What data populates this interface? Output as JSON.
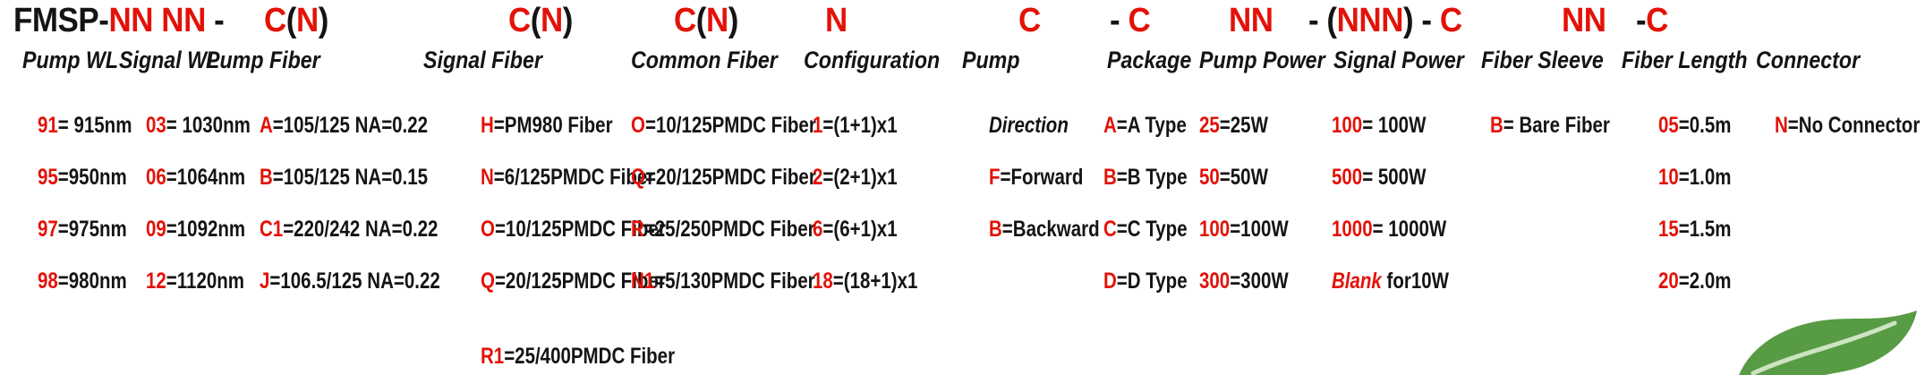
{
  "colors": {
    "accent_red": "#e31208",
    "text_black": "#141414",
    "leaf_green": "#579b44"
  },
  "part_number": {
    "prefix": "FMSP-",
    "wl_codes": "NN NN",
    "dash": " - ",
    "cn": {
      "c": "C",
      "open": "(",
      "n": "N",
      "close": ")"
    },
    "configuration": "N",
    "pump": "C",
    "package": {
      "dash": "- ",
      "c": "C"
    },
    "pump_power": "NN",
    "signal_power": {
      "pre": "- (",
      "n": "NNN",
      "post": ") - ",
      "c": "C"
    },
    "fiber_length": "NN",
    "connector": {
      "dash": "-",
      "c": "C"
    }
  },
  "columns": {
    "pump_wl": {
      "header": "Pump WL",
      "items": [
        [
          [
            "91",
            "r"
          ],
          [
            "= 915nm",
            "b"
          ]
        ],
        [
          [
            "95",
            "r"
          ],
          [
            "=950nm",
            "b"
          ]
        ],
        [
          [
            "97",
            "r"
          ],
          [
            "=975nm",
            "b"
          ]
        ],
        [
          [
            "98",
            "r"
          ],
          [
            "=980nm",
            "b"
          ]
        ]
      ]
    },
    "signal_wl": {
      "header": "Signal WL",
      "items": [
        [
          [
            "03",
            "r"
          ],
          [
            "= 1030nm",
            "b"
          ]
        ],
        [
          [
            "06",
            "r"
          ],
          [
            "=1064nm",
            "b"
          ]
        ],
        [
          [
            "09",
            "r"
          ],
          [
            "=1092nm",
            "b"
          ]
        ],
        [
          [
            "12",
            "r"
          ],
          [
            "=1120nm",
            "b"
          ]
        ]
      ]
    },
    "pump_fiber": {
      "header": "Pump Fiber",
      "items": [
        [
          [
            "A",
            "r"
          ],
          [
            "=105/125 NA=0.22",
            "b"
          ]
        ],
        [
          [
            "B",
            "r"
          ],
          [
            "=105/125 NA=0.15",
            "b"
          ]
        ],
        [
          [
            "C1",
            "r"
          ],
          [
            "=220/242 NA=0.22",
            "b"
          ]
        ],
        [
          [
            "J",
            "r"
          ],
          [
            "=106.5/125 NA=0.22",
            "b"
          ]
        ]
      ]
    },
    "signal_fiber": {
      "header": "Signal Fiber",
      "items": [
        [
          [
            "H",
            "r"
          ],
          [
            "=PM980 Fiber",
            "b"
          ]
        ],
        [
          [
            "N",
            "r"
          ],
          [
            "=6/125PMDC Fiber",
            "b"
          ]
        ],
        [
          [
            "O",
            "r"
          ],
          [
            "=10/125PMDC Fiber",
            "b"
          ]
        ],
        [
          [
            "Q",
            "r"
          ],
          [
            "=20/125PMDC Fiber",
            "b"
          ]
        ],
        [
          [
            "R1",
            "r"
          ],
          [
            "=25/400PMDC Fiber",
            "b"
          ]
        ]
      ]
    },
    "common_fiber": {
      "header": "Common Fiber",
      "items": [
        [
          [
            "O",
            "r"
          ],
          [
            "=10/125PMDC Fiber",
            "b"
          ]
        ],
        [
          [
            "Q",
            "r"
          ],
          [
            "=20/125PMDC Fiber",
            "b"
          ]
        ],
        [
          [
            "R",
            "r"
          ],
          [
            "=25/250PMDC Fiber",
            "b"
          ]
        ],
        [
          [
            "N1",
            "r"
          ],
          [
            "=5/130PMDC Fiber",
            "b"
          ]
        ]
      ]
    },
    "configuration": {
      "header": "Configuration",
      "items": [
        [
          [
            "1",
            "r"
          ],
          [
            "=(1+1)x1",
            "b"
          ]
        ],
        [
          [
            "2",
            "r"
          ],
          [
            "=(2+1)x1",
            "b"
          ]
        ],
        [
          [
            "6",
            "r"
          ],
          [
            "=(6+1)x1",
            "b"
          ]
        ],
        [
          [
            "18",
            "r"
          ],
          [
            "=(18+1)x1",
            "b"
          ]
        ]
      ]
    },
    "pump": {
      "header": "Pump",
      "items": [
        [
          [
            "Direction",
            "bi"
          ]
        ],
        [
          [
            "F",
            "r"
          ],
          [
            "=Forward",
            "b"
          ]
        ],
        [
          [
            "B",
            "r"
          ],
          [
            "=Backward",
            "b"
          ]
        ]
      ]
    },
    "package": {
      "header": "Package",
      "items": [
        [
          [
            "A",
            "r"
          ],
          [
            "=A Type",
            "b"
          ]
        ],
        [
          [
            "B",
            "r"
          ],
          [
            "=B Type",
            "b"
          ]
        ],
        [
          [
            "C",
            "r"
          ],
          [
            "=C Type",
            "b"
          ]
        ],
        [
          [
            "D",
            "r"
          ],
          [
            "=D Type",
            "b"
          ]
        ]
      ]
    },
    "pump_power": {
      "header": "Pump Power",
      "items": [
        [
          [
            "25",
            "r"
          ],
          [
            "=25W",
            "b"
          ]
        ],
        [
          [
            "50",
            "r"
          ],
          [
            "=50W",
            "b"
          ]
        ],
        [
          [
            "100",
            "r"
          ],
          [
            "=100W",
            "b"
          ]
        ],
        [
          [
            "300",
            "r"
          ],
          [
            "=300W",
            "b"
          ]
        ]
      ]
    },
    "signal_power": {
      "header": "Signal Power",
      "items": [
        [
          [
            "100",
            "r"
          ],
          [
            "= 100W",
            "b"
          ]
        ],
        [
          [
            "500",
            "r"
          ],
          [
            "= 500W",
            "b"
          ]
        ],
        [
          [
            "1000",
            "r"
          ],
          [
            "= 1000W",
            "b"
          ]
        ],
        [
          [
            "Blank",
            "ri"
          ],
          [
            " for10W",
            "b"
          ]
        ]
      ]
    },
    "fiber_sleeve": {
      "header": "Fiber Sleeve",
      "items": [
        [
          [
            "B",
            "r"
          ],
          [
            "= Bare Fiber",
            "b"
          ]
        ]
      ]
    },
    "fiber_length": {
      "header": "Fiber Length",
      "items": [
        [
          [
            "05",
            "r"
          ],
          [
            "=0.5m",
            "b"
          ]
        ],
        [
          [
            "10",
            "r"
          ],
          [
            "=1.0m",
            "b"
          ]
        ],
        [
          [
            "15",
            "r"
          ],
          [
            "=1.5m",
            "b"
          ]
        ],
        [
          [
            "20",
            "r"
          ],
          [
            "=2.0m",
            "b"
          ]
        ]
      ]
    },
    "connector": {
      "header": "Connector",
      "items": [
        [
          [
            "N",
            "r"
          ],
          [
            "=No Connector",
            "b"
          ]
        ]
      ]
    }
  }
}
